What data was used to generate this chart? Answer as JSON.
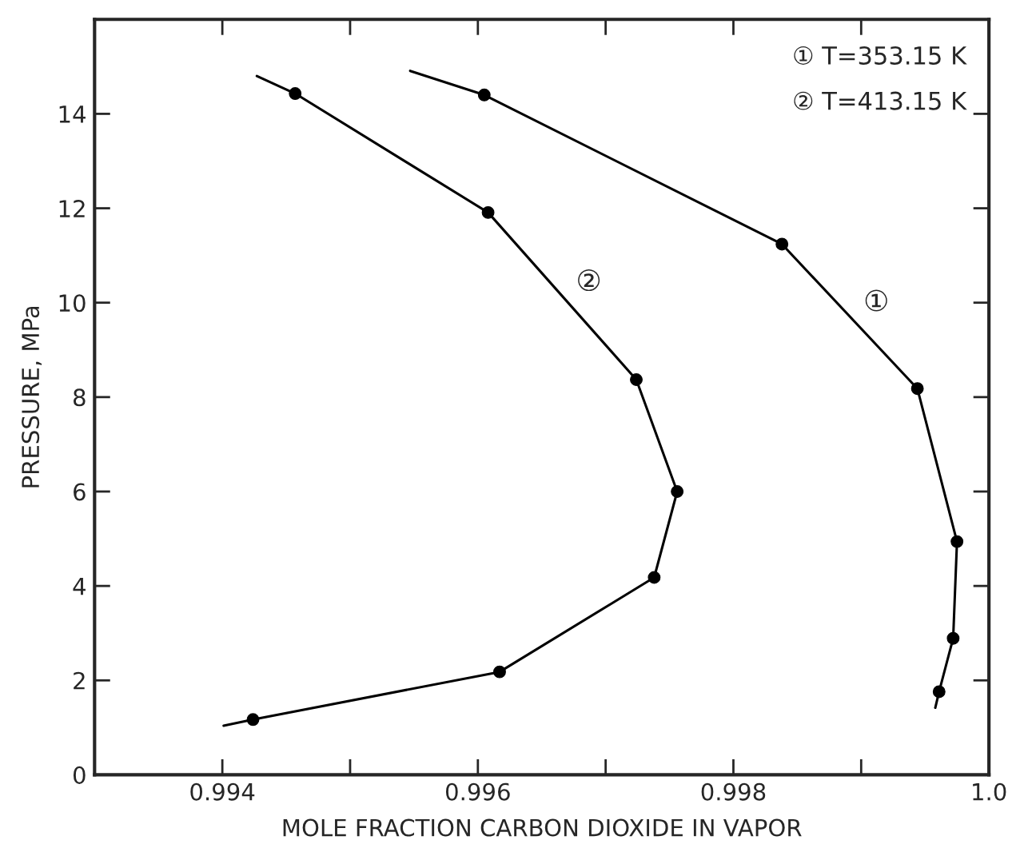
{
  "chart_data": {
    "type": "line",
    "xlabel": "MOLE FRACTION CARBON DIOXIDE IN VAPOR",
    "ylabel": "PRESSURE, MPa",
    "series": [
      {
        "name": "①",
        "color": "#000000",
        "x": [
          0.99547,
          0.99605,
          0.99838,
          0.99944,
          0.99975,
          0.99972,
          0.99961,
          0.99958
        ],
        "values": [
          14.91,
          14.4,
          11.24,
          8.18,
          4.94,
          2.89,
          1.76,
          1.42
        ]
      },
      {
        "name": "②",
        "color": "#000000",
        "x": [
          0.99427,
          0.99457,
          0.99608,
          0.99724,
          0.99756,
          0.99738,
          0.99617,
          0.99424,
          0.99401
        ],
        "values": [
          14.8,
          14.43,
          11.91,
          8.37,
          6.0,
          4.18,
          2.18,
          1.17,
          1.04
        ]
      },
      {
        "type": "scatter",
        "color": "#000000",
        "marker": "circle",
        "x": [
          0.99605,
          0.99838,
          0.99944,
          0.99975,
          0.99972,
          0.99961
        ],
        "values": [
          14.4,
          11.24,
          8.18,
          4.94,
          2.89,
          1.76
        ]
      },
      {
        "type": "scatter",
        "color": "#000000",
        "marker": "circle",
        "x": [
          0.99457,
          0.99608,
          0.99724,
          0.99756,
          0.99738,
          0.99617,
          0.99424
        ],
        "values": [
          14.43,
          11.91,
          8.37,
          6.0,
          4.18,
          2.18,
          1.17
        ]
      }
    ],
    "xlim": [
      0.993,
      1.0
    ],
    "xticks": [
      0.994,
      {
        "value": 0.995,
        "label": null
      },
      0.996,
      {
        "value": 0.997,
        "label": null
      },
      0.998,
      {
        "value": 0.999,
        "label": null
      },
      {
        "value": 1.0,
        "label": "1.0"
      }
    ],
    "ylim": [
      0,
      16
    ],
    "yticks": [
      0,
      2,
      4,
      6,
      8,
      10,
      12,
      14
    ],
    "grid": false,
    "legend": false,
    "annotations": [
      "① T=353.15 K",
      "② T=413.15 K"
    ]
  }
}
